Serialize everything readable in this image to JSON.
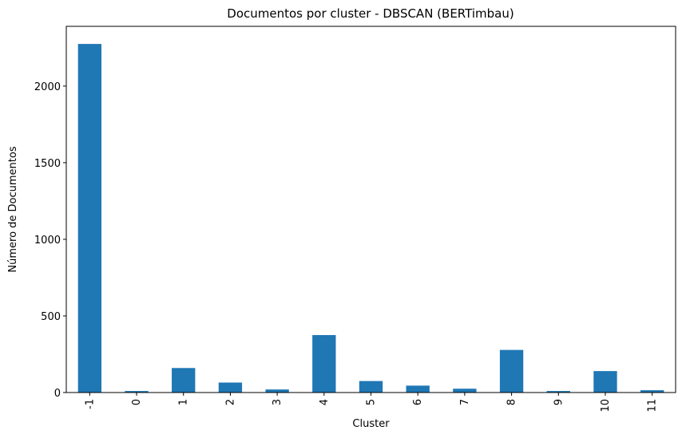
{
  "chart_data": {
    "type": "bar",
    "title": "Documentos por cluster - DBSCAN (BERTimbau)",
    "xlabel": "Cluster",
    "ylabel": "Número de Documentos",
    "categories": [
      "-1",
      "0",
      "1",
      "2",
      "3",
      "4",
      "5",
      "6",
      "7",
      "8",
      "9",
      "10",
      "11"
    ],
    "values": [
      2275,
      10,
      160,
      65,
      20,
      375,
      75,
      45,
      25,
      278,
      10,
      140,
      15
    ],
    "ylim": [
      0,
      2390
    ],
    "yticks": [
      0,
      500,
      1000,
      1500,
      2000
    ],
    "bar_color": "#1f77b4",
    "grid": false,
    "legend": "none"
  }
}
